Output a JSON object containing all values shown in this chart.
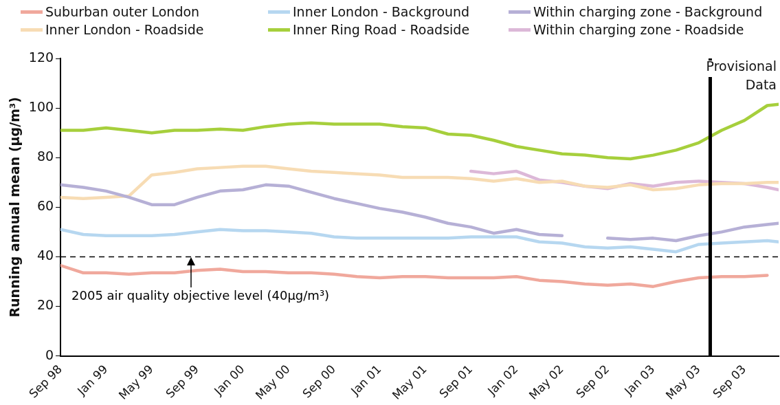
{
  "chart_data": {
    "type": "line",
    "ylabel": "Running annual mean (μg/m³)",
    "x": [
      "1998-09",
      "1998-11",
      "1999-01",
      "1999-03",
      "1999-05",
      "1999-07",
      "1999-09",
      "1999-11",
      "2000-01",
      "2000-03",
      "2000-05",
      "2000-07",
      "2000-09",
      "2000-11",
      "2001-01",
      "2001-03",
      "2001-05",
      "2001-07",
      "2001-09",
      "2001-11",
      "2002-01",
      "2002-03",
      "2002-05",
      "2002-07",
      "2002-09",
      "2002-11",
      "2003-01",
      "2003-03",
      "2003-05",
      "2003-07",
      "2003-09",
      "2003-11",
      "2003-12"
    ],
    "series": [
      {
        "name": "Suburban outer London",
        "color": "#f0a89c",
        "values": [
          36.5,
          33.5,
          33.5,
          33,
          33.5,
          33.5,
          34.5,
          35,
          34,
          34,
          33.5,
          33.5,
          33,
          32,
          31.5,
          32,
          32,
          31.5,
          31.5,
          31.5,
          32,
          30.5,
          30,
          29,
          28.5,
          29,
          28,
          30,
          31.5,
          32,
          32,
          32.5,
          null
        ]
      },
      {
        "name": "Inner London - Background",
        "color": "#b6d7f0",
        "values": [
          51,
          49,
          48.5,
          48.5,
          48.5,
          49,
          50,
          51,
          50.5,
          50.5,
          50,
          49.5,
          48,
          47.5,
          47.5,
          47.5,
          47.5,
          47.5,
          48,
          48,
          48,
          46,
          45.5,
          44,
          43.5,
          44,
          43,
          42,
          45,
          45.5,
          46,
          46.5,
          46
        ]
      },
      {
        "name": "Within charging zone - Background",
        "color": "#b6b0d6",
        "values": [
          69,
          68,
          66.5,
          64,
          61,
          61,
          64,
          66.5,
          67,
          69,
          68.5,
          66,
          63.5,
          61.5,
          59.5,
          58,
          56,
          53.5,
          52,
          49.5,
          51,
          49,
          48.5,
          null,
          47.5,
          47,
          47.5,
          46.5,
          48.5,
          50,
          52,
          53,
          53.5
        ]
      },
      {
        "name": "Inner London - Roadside",
        "color": "#f7dcb4",
        "values": [
          64,
          63.5,
          64,
          64.5,
          73,
          74,
          75.5,
          76,
          76.5,
          76.5,
          75.5,
          74.5,
          74,
          73.5,
          73,
          72,
          72,
          72,
          71.5,
          70.5,
          71.5,
          70,
          70.5,
          68.5,
          68,
          69,
          67,
          67.5,
          69,
          69.5,
          69.5,
          70,
          70
        ]
      },
      {
        "name": "Inner Ring Road - Roadside",
        "color": "#a6cf3c",
        "values": [
          91,
          91,
          92,
          91,
          90,
          91,
          91,
          91.5,
          91,
          92.5,
          93.5,
          94,
          93.5,
          93.5,
          93.5,
          92.5,
          92,
          89.5,
          89,
          87,
          84.5,
          83,
          81.5,
          81,
          80,
          79.5,
          81,
          83,
          86,
          91,
          95,
          101,
          101.5
        ]
      },
      {
        "name": "Within charging zone - Roadside",
        "color": "#dcb8d8",
        "values": [
          null,
          null,
          null,
          null,
          null,
          null,
          null,
          null,
          null,
          null,
          null,
          null,
          null,
          null,
          null,
          null,
          null,
          null,
          74.5,
          73.5,
          74.5,
          71,
          70,
          68.5,
          67.5,
          69.5,
          68.5,
          70,
          70.5,
          70,
          69.5,
          68,
          67
        ]
      }
    ],
    "xlim": [
      "1998-09",
      "2003-12"
    ],
    "xticks": [
      {
        "value": "1998-09",
        "label": "Sep 98"
      },
      {
        "value": "1999-01",
        "label": "Jan 99"
      },
      {
        "value": "1999-05",
        "label": "May 99"
      },
      {
        "value": "1999-09",
        "label": "Sep 99"
      },
      {
        "value": "2000-01",
        "label": "Jan 00"
      },
      {
        "value": "2000-05",
        "label": "May 00"
      },
      {
        "value": "2000-09",
        "label": "Sep 00"
      },
      {
        "value": "2001-01",
        "label": "Jan 01"
      },
      {
        "value": "2001-05",
        "label": "May 01"
      },
      {
        "value": "2001-09",
        "label": "Sep 01"
      },
      {
        "value": "2002-01",
        "label": "Jan 02"
      },
      {
        "value": "2002-05",
        "label": "May 02"
      },
      {
        "value": "2002-09",
        "label": "Sep 02"
      },
      {
        "value": "2003-01",
        "label": "Jan 03"
      },
      {
        "value": "2003-05",
        "label": "May 03"
      },
      {
        "value": "2003-09",
        "label": "Sep 03"
      }
    ],
    "ylim": [
      0,
      120
    ],
    "yticks": [
      0,
      20,
      40,
      60,
      80,
      100,
      120
    ],
    "ref_lines": [
      {
        "axis": "y",
        "value": 40,
        "line_style": "dashed",
        "color": "#000000"
      },
      {
        "axis": "x",
        "value": "2003-06",
        "label": "Provisional Data",
        "line_style": "solid",
        "color": "#000000"
      }
    ],
    "annotations": [
      {
        "text": "2005 air quality objective level (40μg/m³)",
        "x": "1999-08-15",
        "y": 40
      }
    ],
    "grid": false,
    "legend": "top",
    "marker": "none",
    "line_style": "solid"
  }
}
